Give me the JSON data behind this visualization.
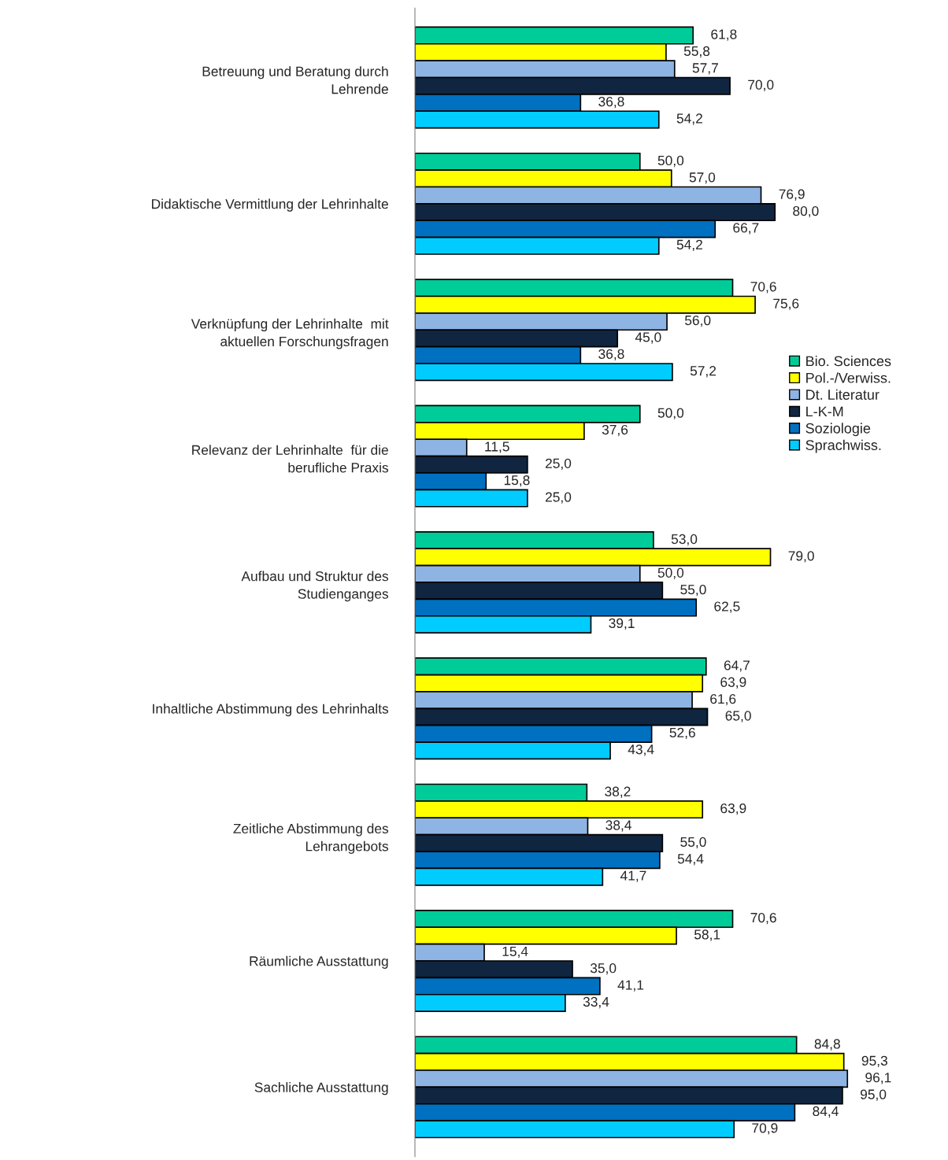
{
  "chart_data": {
    "type": "bar",
    "orientation": "horizontal",
    "legend": "right",
    "grid": false,
    "tick_labels": "y",
    "categories": [
      "Betreuung und Beratung durch\nLehrende",
      "Didaktische Vermittlung der Lehrinhalte",
      "Verknüpfung der Lehrinhalte  mit\naktuellen Forschungsfragen",
      "Relevanz der Lehrinhalte  für die\nberufliche Praxis",
      "Aufbau und Struktur des\nStudienganges",
      "Inhaltliche Abstimmung des Lehrinhalts",
      "Zeitliche Abstimmung des\nLehrangebots",
      "Räumliche Ausstattung",
      "Sachliche Ausstattung"
    ],
    "series": [
      {
        "name": "Bio. Sciences",
        "color": "#00cc99",
        "values": [
          61.8,
          50.0,
          70.6,
          50.0,
          53.0,
          64.7,
          38.2,
          70.6,
          84.8
        ],
        "value_labels": [
          "61,8",
          "50,0",
          "70,6",
          "50,0",
          "53,0",
          "64,7",
          "38,2",
          "70,6",
          "84,8"
        ]
      },
      {
        "name": "Pol.-/Verwiss.",
        "color": "#ffff00",
        "values": [
          55.8,
          57.0,
          75.6,
          37.6,
          79.0,
          63.9,
          63.9,
          58.1,
          95.3
        ],
        "value_labels": [
          "55,8",
          "57,0",
          "75,6",
          "37,6",
          "79,0",
          "63,9",
          "63,9",
          "58,1",
          "95,3"
        ]
      },
      {
        "name": "Dt. Literatur",
        "color": "#8eb4e3",
        "values": [
          57.7,
          76.9,
          56.0,
          11.5,
          50.0,
          61.6,
          38.4,
          15.4,
          96.1
        ],
        "value_labels": [
          "57,7",
          "76,9",
          "56,0",
          "11,5",
          "50,0",
          "61,6",
          "38,4",
          "15,4",
          "96,1"
        ]
      },
      {
        "name": "L-K-M",
        "color": "#10253f",
        "values": [
          70.0,
          80.0,
          45.0,
          25.0,
          55.0,
          65.0,
          55.0,
          35.0,
          95.0
        ],
        "value_labels": [
          "70,0",
          "80,0",
          "45,0",
          "25,0",
          "55,0",
          "65,0",
          "55,0",
          "35,0",
          "95,0"
        ]
      },
      {
        "name": "Soziologie",
        "color": "#0070c0",
        "values": [
          36.8,
          66.7,
          36.8,
          15.8,
          62.5,
          52.6,
          54.4,
          41.1,
          84.4
        ],
        "value_labels": [
          "36,8",
          "66,7",
          "36,8",
          "15,8",
          "62,5",
          "52,6",
          "54,4",
          "41,1",
          "84,4"
        ]
      },
      {
        "name": "Sprachwiss.",
        "color": "#00ccff",
        "values": [
          54.2,
          54.2,
          57.2,
          25.0,
          39.1,
          43.4,
          41.7,
          33.4,
          70.9
        ],
        "value_labels": [
          "54,2",
          "54,2",
          "57,2",
          "25,0",
          "39,1",
          "43,4",
          "41,7",
          "33,4",
          "70,9"
        ]
      }
    ]
  }
}
